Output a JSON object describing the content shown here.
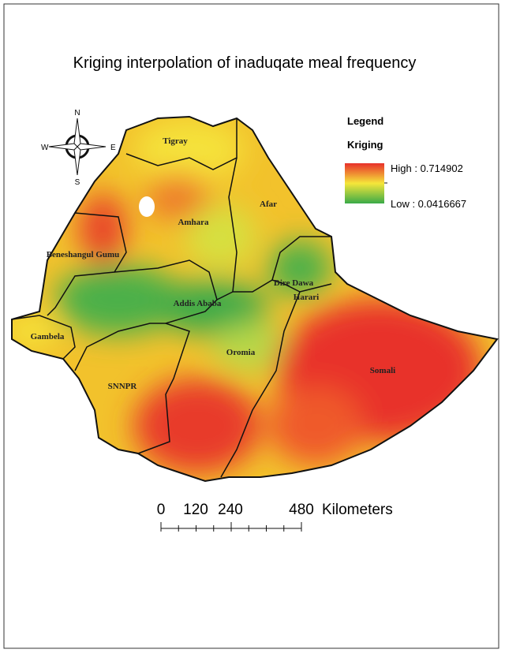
{
  "title": "Kriging interpolation of inaduqate meal frequency",
  "compass": {
    "north": "N",
    "south": "S",
    "east": "E",
    "west": "W"
  },
  "legend": {
    "title": "Legend",
    "subtitle": "Kriging",
    "high": "High : 0.714902",
    "low": "Low : 0.0416667"
  },
  "regions": [
    "Tigray",
    "Amhara",
    "Afar",
    "Beneshangul Gumu",
    "Dire Dawa",
    "Harari",
    "Addis Ababa",
    "Gambela",
    "Oromia",
    "SNNPR",
    "Somali"
  ],
  "scale_bar": {
    "labels": [
      "0",
      "120",
      "240",
      "480"
    ],
    "unit": "Kilometers"
  }
}
